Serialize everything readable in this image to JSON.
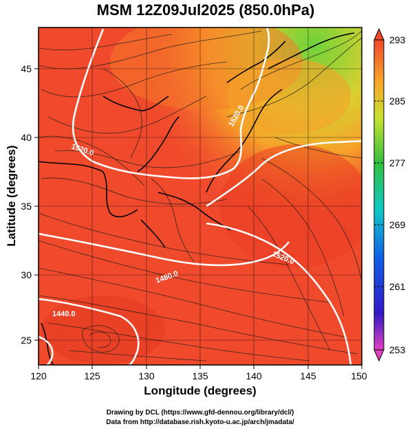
{
  "title": "MSM 12Z09Jul2025 (850.0hPa)",
  "axes": {
    "xlabel": "Longitude (degrees)",
    "ylabel": "Latitude  (degrees)",
    "xticks": [
      "120",
      "125",
      "130",
      "135",
      "140",
      "145",
      "150"
    ],
    "yticks": [
      "45",
      "40",
      "35",
      "30",
      "25"
    ]
  },
  "colorbar": {
    "labels": [
      "293",
      "285",
      "277",
      "269",
      "261",
      "253"
    ]
  },
  "contour_labels": [
    "1520.0",
    "1520.0",
    "1480.0",
    "1440.0",
    "1520.0"
  ],
  "credits": {
    "line1": "Drawing by DCL (https://www.gfd-dennou.org/library/dcl/)",
    "line2": "Data from http://database.rish.kyoto-u.ac.jp/arch/jmadata/"
  },
  "colors": {
    "warm": "#f04a2c",
    "mid": "#f8a12a",
    "cool": "#78d43c",
    "contour": "#ffffff"
  }
}
